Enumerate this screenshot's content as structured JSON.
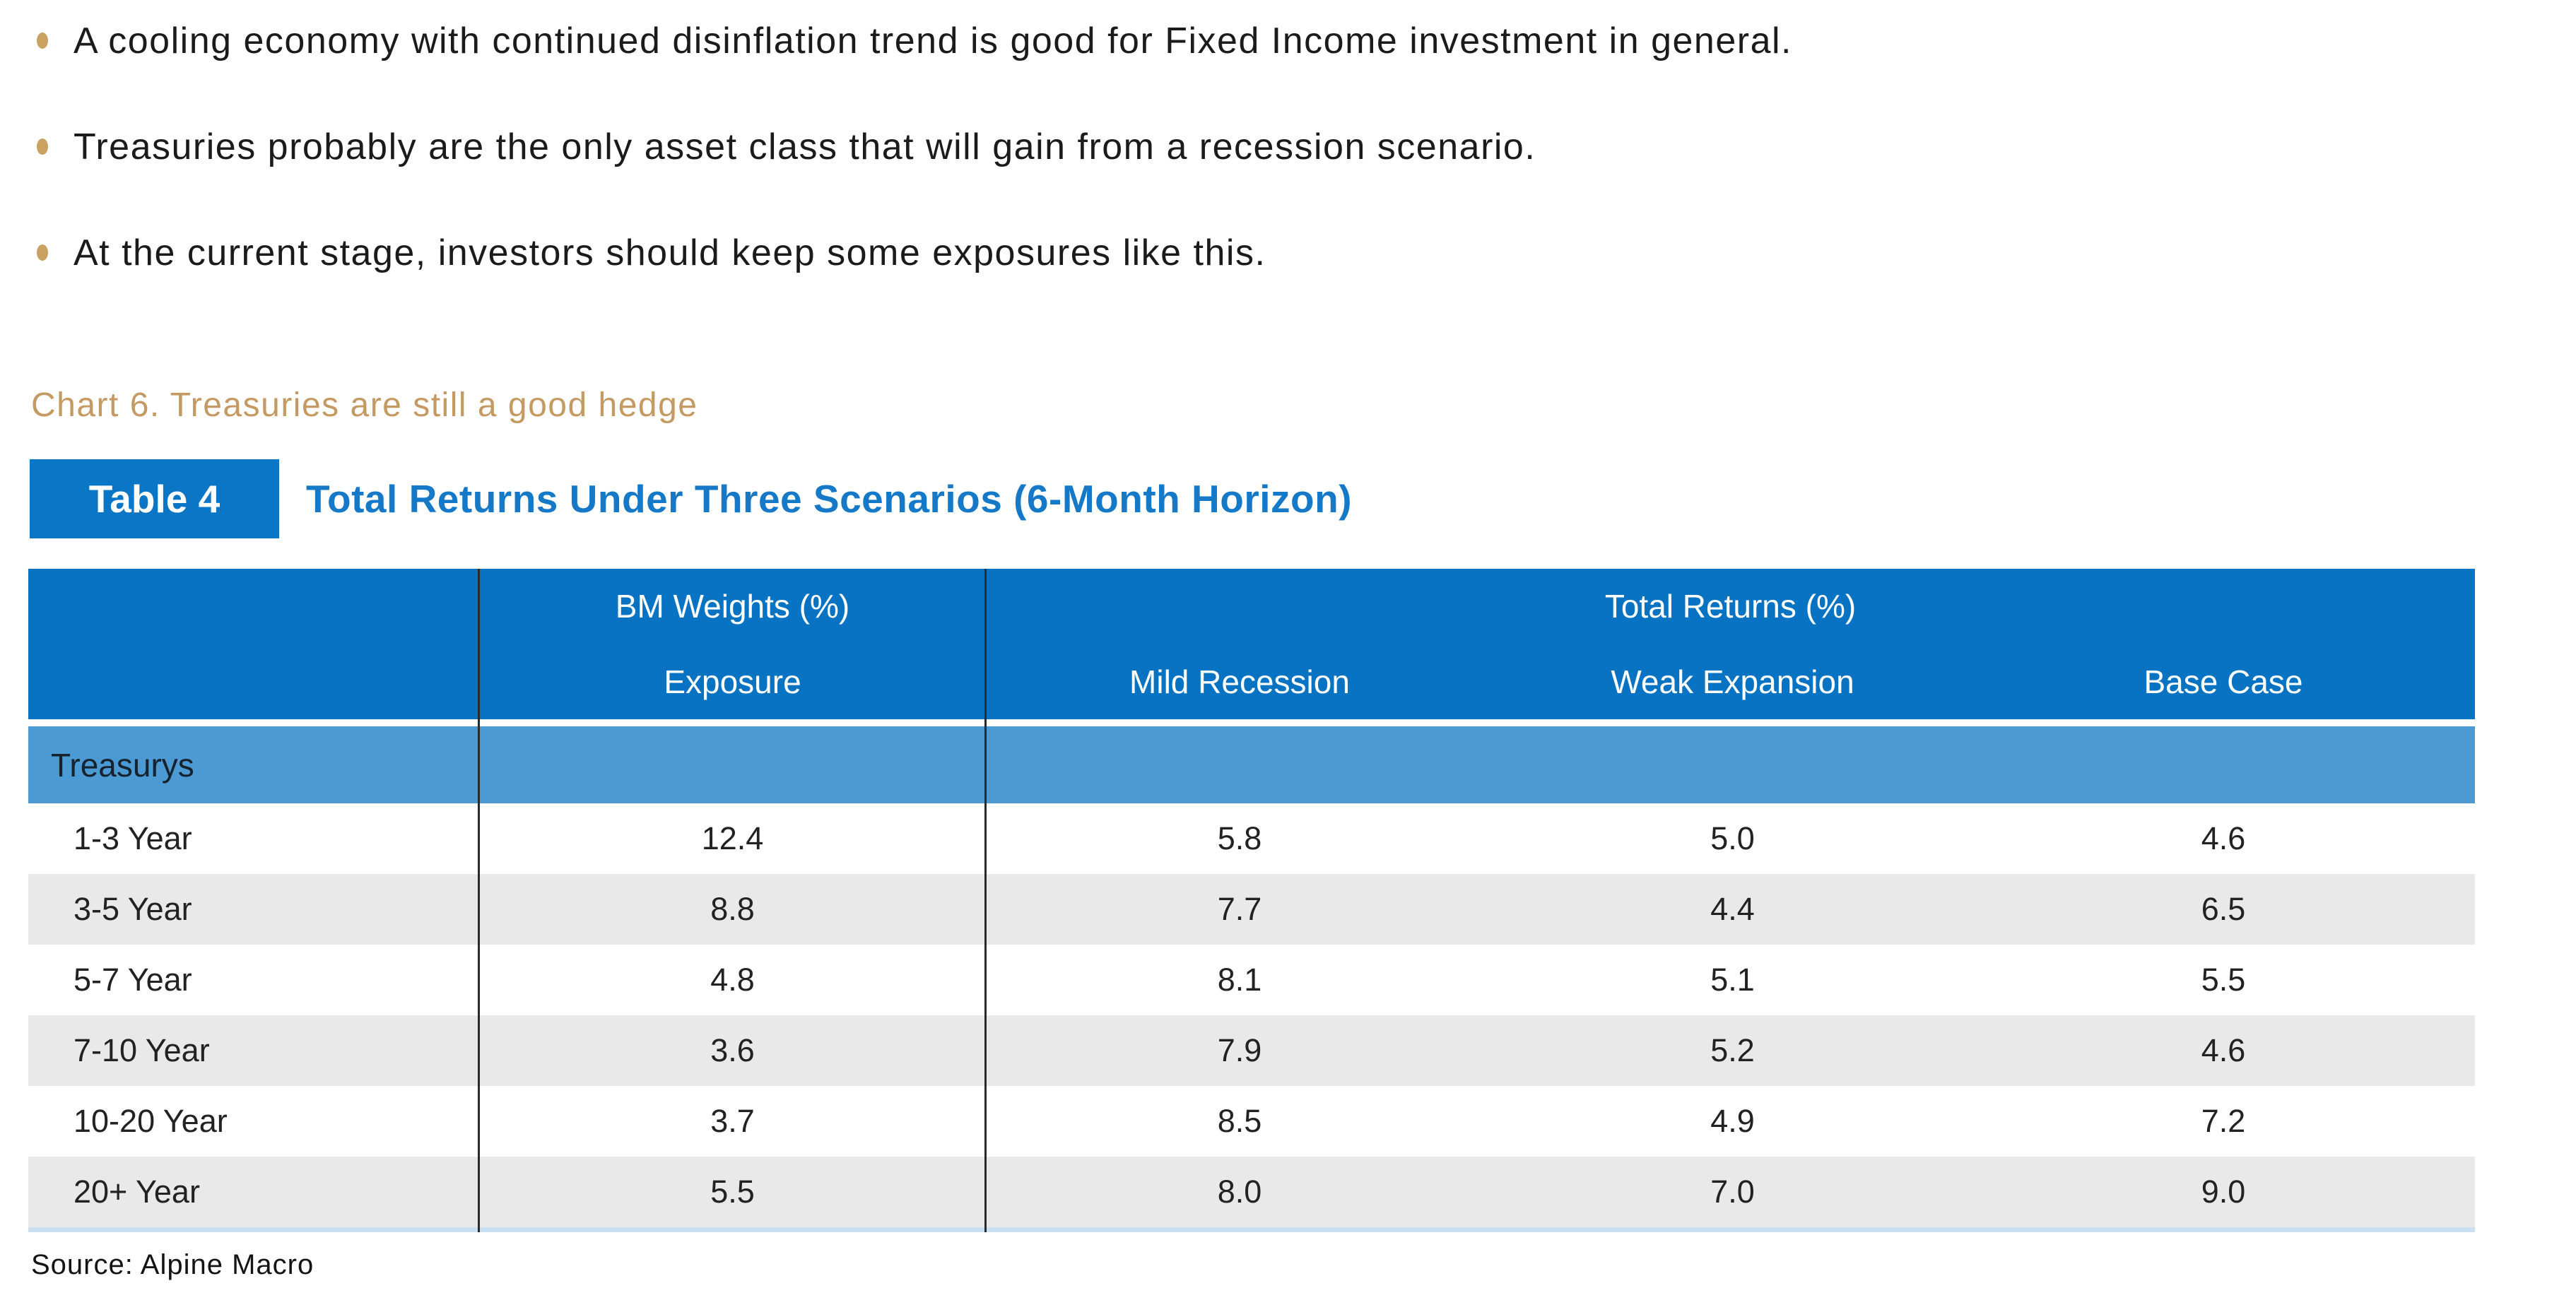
{
  "bullets": {
    "items": [
      "A cooling economy with continued disinflation trend is good for Fixed Income investment in general.",
      "Treasuries probably are the only asset class that will gain from a recession scenario.",
      "At the current stage, investors should keep some exposures like this."
    ],
    "bullet_color": "#C9A262"
  },
  "caption": {
    "text": "Chart 6. Treasuries are still a good hedge",
    "color": "#C49A62"
  },
  "table": {
    "badge": "Table 4",
    "title": "Total Returns Under Three Scenarios (6-Month Horizon)",
    "group_headers": {
      "bm_weights": "BM Weights (%)",
      "total_returns": "Total Returns (%)"
    },
    "sub_headers": {
      "exposure": "Exposure",
      "mild_recession": "Mild Recession",
      "weak_expansion": "Weak Expansion",
      "base_case": "Base Case"
    },
    "section_label": "Treasurys",
    "rows": [
      {
        "cells": [
          "1-3 Year",
          "12.4",
          "5.8",
          "5.0",
          "4.6"
        ]
      },
      {
        "cells": [
          "3-5 Year",
          "8.8",
          "7.7",
          "4.4",
          "6.5"
        ]
      },
      {
        "cells": [
          "5-7 Year",
          "4.8",
          "8.1",
          "5.1",
          "5.5"
        ]
      },
      {
        "cells": [
          "7-10 Year",
          "3.6",
          "7.9",
          "5.2",
          "4.6"
        ]
      },
      {
        "cells": [
          "10-20 Year",
          "3.7",
          "8.5",
          "4.9",
          "7.2"
        ]
      },
      {
        "cells": [
          "20+ Year",
          "5.5",
          "8.0",
          "7.0",
          "9.0"
        ]
      }
    ],
    "colors": {
      "header_bg": "#0873C2",
      "badge_bg": "#0B75C6",
      "title_text": "#1579C7",
      "section_bg": "#4C9AD3",
      "zebra_gray": "#E9E9E9"
    }
  },
  "source": {
    "text": "Source: Alpine Macro"
  },
  "chart_data": {
    "type": "table",
    "title": "Total Returns Under Three Scenarios (6-Month Horizon)",
    "column_groups": [
      "",
      "BM Weights (%)",
      "Total Returns (%)",
      "Total Returns (%)",
      "Total Returns (%)"
    ],
    "columns": [
      "",
      "Exposure",
      "Mild Recession",
      "Weak Expansion",
      "Base Case"
    ],
    "section": "Treasurys",
    "rows": [
      [
        "1-3 Year",
        12.4,
        5.8,
        5.0,
        4.6
      ],
      [
        "3-5 Year",
        8.8,
        7.7,
        4.4,
        6.5
      ],
      [
        "5-7 Year",
        4.8,
        8.1,
        5.1,
        5.5
      ],
      [
        "7-10 Year",
        3.6,
        7.9,
        5.2,
        4.6
      ],
      [
        "10-20 Year",
        3.7,
        8.5,
        4.9,
        7.2
      ],
      [
        "20+ Year",
        5.5,
        8.0,
        7.0,
        9.0
      ]
    ],
    "source": "Alpine Macro"
  }
}
